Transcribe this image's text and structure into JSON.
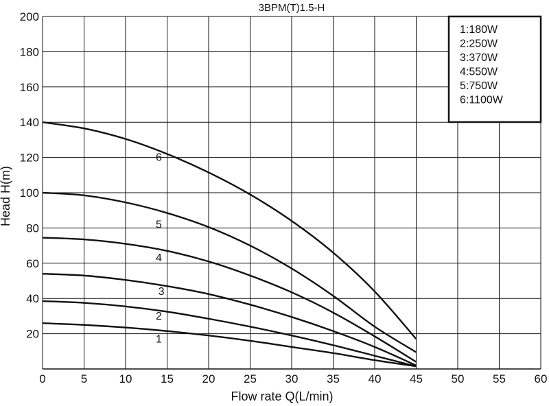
{
  "chart_data": {
    "type": "line",
    "title": "3BPM(T)1.5-H",
    "xlabel": "Flow rate Q(L/min)",
    "ylabel": "Head H(m)",
    "xlim": [
      0,
      60
    ],
    "ylim": [
      0,
      200
    ],
    "xticks": [
      0,
      5,
      10,
      15,
      20,
      25,
      30,
      35,
      40,
      45,
      50,
      55,
      60
    ],
    "yticks": [
      20,
      40,
      60,
      80,
      100,
      120,
      140,
      160,
      180,
      200
    ],
    "grid": true,
    "legend_position": "top-right",
    "legend": [
      "1:180W",
      "2:250W",
      "3:370W",
      "4:550W",
      "5:750W",
      "6:1100W"
    ],
    "series": [
      {
        "label": "1",
        "x": [
          0,
          5,
          10,
          15,
          20,
          25,
          30,
          35,
          40,
          45
        ],
        "y": [
          26,
          25,
          23.5,
          21.5,
          19,
          16,
          12.5,
          9,
          5,
          1.5
        ]
      },
      {
        "label": "2",
        "x": [
          0,
          5,
          10,
          15,
          20,
          25,
          30,
          35,
          40,
          45
        ],
        "y": [
          38.5,
          37.5,
          35.5,
          32.5,
          28.5,
          24,
          19,
          13.5,
          7.5,
          1.5
        ]
      },
      {
        "label": "3",
        "x": [
          0,
          5,
          10,
          15,
          20,
          25,
          30,
          35,
          40,
          45
        ],
        "y": [
          54,
          53,
          50.5,
          47,
          42.5,
          36.5,
          29.5,
          21.5,
          12.5,
          2
        ]
      },
      {
        "label": "4",
        "x": [
          0,
          5,
          10,
          15,
          20,
          25,
          30,
          35,
          40,
          45
        ],
        "y": [
          74.5,
          73.5,
          71,
          67,
          61,
          53,
          43.5,
          32,
          18.5,
          4
        ]
      },
      {
        "label": "5",
        "x": [
          0,
          5,
          10,
          15,
          20,
          25,
          30,
          35,
          40,
          45
        ],
        "y": [
          100,
          98.5,
          94.5,
          88.5,
          80.5,
          70,
          57,
          41.5,
          24,
          9.5
        ]
      },
      {
        "label": "6",
        "x": [
          0,
          5,
          10,
          15,
          20,
          25,
          30,
          35,
          40,
          45
        ],
        "y": [
          140,
          136.5,
          130.5,
          122,
          111.5,
          99,
          84,
          66,
          44,
          17
        ]
      }
    ],
    "label_points": [
      {
        "text": "1",
        "x": 14,
        "y": 15
      },
      {
        "text": "2",
        "x": 14,
        "y": 28
      },
      {
        "text": "3",
        "x": 14.3,
        "y": 42
      },
      {
        "text": "4",
        "x": 14,
        "y": 61
      },
      {
        "text": "5",
        "x": 14,
        "y": 80
      },
      {
        "text": "6",
        "x": 14,
        "y": 118
      }
    ]
  },
  "colors": {
    "line": "#111111",
    "grid": "#111111",
    "background": "#ffffff"
  }
}
